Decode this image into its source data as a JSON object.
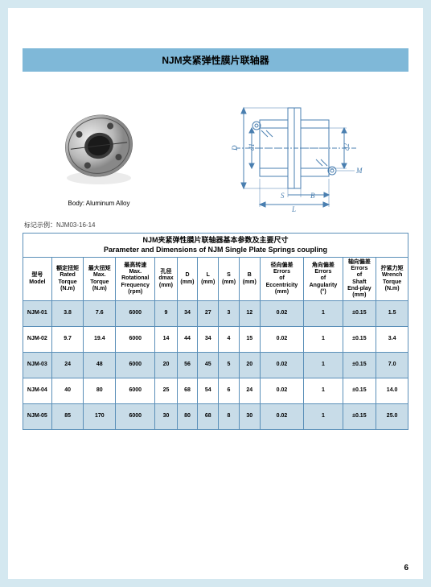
{
  "title": "NJM夹紧弹性膜片联轴器",
  "body_label": "Body: Aluminum Alloy",
  "note_label": "标记示例：NJM03-16-14",
  "table_title_cn": "NJM夹紧弹性膜片联轴器基本参数及主要尺寸",
  "table_title_en": "Parameter and Dimensions of NJM Single Plate Springs coupling",
  "page_number": "6",
  "diagram_labels": {
    "D": "D",
    "d1": "d1",
    "d2": "d2",
    "M": "M",
    "S": "S",
    "B": "B",
    "L": "L"
  },
  "columns": [
    {
      "cn": "型号",
      "en": "Model"
    },
    {
      "cn": "额定扭矩",
      "en": "Rated Torque (N.m)"
    },
    {
      "cn": "最大扭矩",
      "en": "Max. Torque (N.m)"
    },
    {
      "cn": "最高转速",
      "en": "Max. Rotational Frequency (rpm)"
    },
    {
      "cn": "孔径",
      "en": "dmax (mm)"
    },
    {
      "cn": "",
      "en": "D (mm)"
    },
    {
      "cn": "",
      "en": "L (mm)"
    },
    {
      "cn": "",
      "en": "S (mm)"
    },
    {
      "cn": "",
      "en": "B (mm)"
    },
    {
      "cn": "径向偏差",
      "en": "Errors of Eccentricity (mm)"
    },
    {
      "cn": "角向偏差",
      "en": "Errors of Angularity (°)"
    },
    {
      "cn": "轴向偏差",
      "en": "Errors of Shaft End-play (mm)"
    },
    {
      "cn": "拧紧力矩",
      "en": "Wrench Torque (N.m)"
    }
  ],
  "rows": [
    [
      "NJM-01",
      "3.8",
      "7.6",
      "6000",
      "9",
      "34",
      "27",
      "3",
      "12",
      "0.02",
      "1",
      "±0.15",
      "1.5"
    ],
    [
      "NJM-02",
      "9.7",
      "19.4",
      "6000",
      "14",
      "44",
      "34",
      "4",
      "15",
      "0.02",
      "1",
      "±0.15",
      "3.4"
    ],
    [
      "NJM-03",
      "24",
      "48",
      "6000",
      "20",
      "56",
      "45",
      "5",
      "20",
      "0.02",
      "1",
      "±0.15",
      "7.0"
    ],
    [
      "NJM-04",
      "40",
      "80",
      "6000",
      "25",
      "68",
      "54",
      "6",
      "24",
      "0.02",
      "1",
      "±0.15",
      "14.0"
    ],
    [
      "NJM-05",
      "85",
      "170",
      "6000",
      "30",
      "80",
      "68",
      "8",
      "30",
      "0.02",
      "1",
      "±0.15",
      "25.0"
    ]
  ],
  "colors": {
    "page_bg": "#d4e8f0",
    "title_bg": "#7fb8d8",
    "border": "#5a8fb8",
    "row_alt": "#c8dce8",
    "diagram_stroke": "#4a7fb0"
  }
}
